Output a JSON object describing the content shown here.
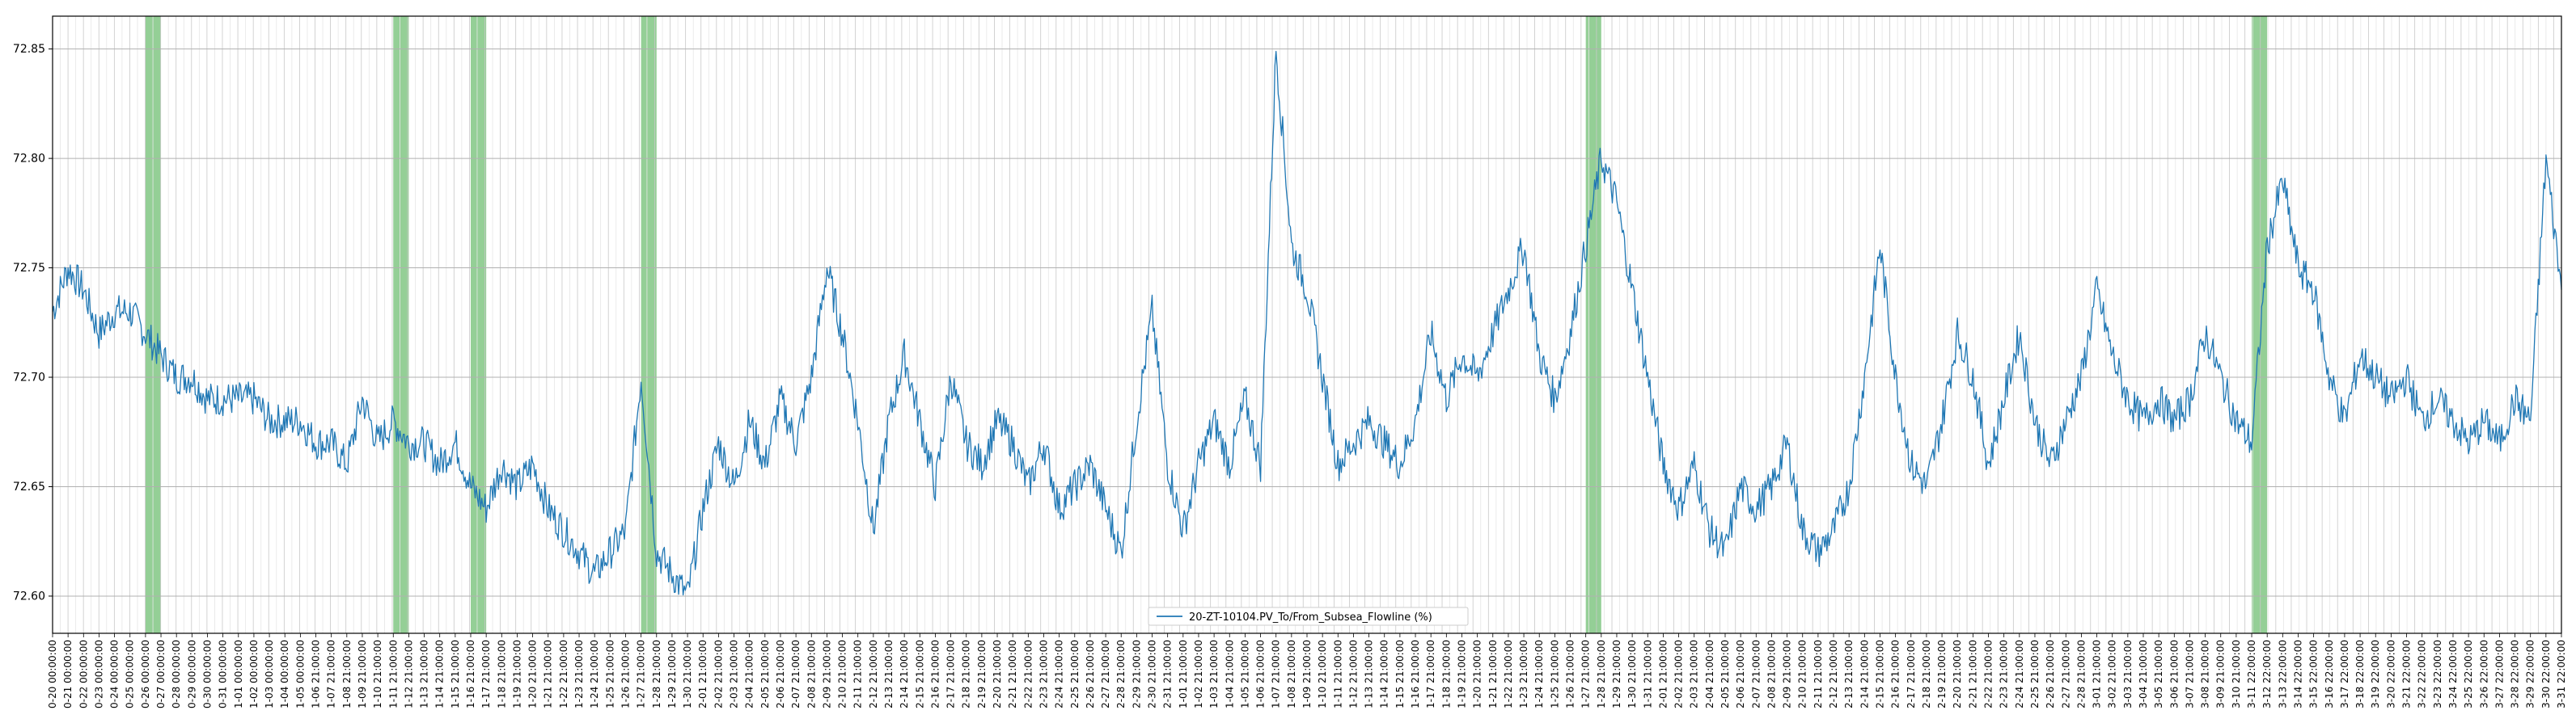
{
  "chart_data": {
    "type": "line",
    "title": "",
    "xlabel": "",
    "ylabel": "",
    "x_range": [
      "2024-10-20",
      "2025-03-31"
    ],
    "ylim": [
      72.583,
      72.865
    ],
    "yticks": [
      72.6,
      72.65,
      72.7,
      72.75,
      72.8,
      72.85
    ],
    "ytick_labels": [
      "72.60",
      "72.65",
      "72.70",
      "72.75",
      "72.80",
      "72.85"
    ],
    "grid": true,
    "legend_position": "bottom-center",
    "series": [
      {
        "name": "20-ZT-10104.PV_To/From_Subsea_Flowline (%)",
        "color": "#1f77b4",
        "points": [
          [
            "2024-10-20",
            72.73
          ],
          [
            "2024-10-21",
            72.75
          ],
          [
            "2024-10-22",
            72.74
          ],
          [
            "2024-10-23",
            72.72
          ],
          [
            "2024-10-24",
            72.73
          ],
          [
            "2024-10-25",
            72.73
          ],
          [
            "2024-10-26",
            72.72
          ],
          [
            "2024-10-27",
            72.71
          ],
          [
            "2024-10-28",
            72.7
          ],
          [
            "2024-10-29",
            72.7
          ],
          [
            "2024-10-30",
            72.69
          ],
          [
            "2024-10-31",
            72.69
          ],
          [
            "2024-11-01",
            72.69
          ],
          [
            "2024-11-02",
            72.69
          ],
          [
            "2024-11-03",
            72.68
          ],
          [
            "2024-11-04",
            72.68
          ],
          [
            "2024-11-05",
            72.68
          ],
          [
            "2024-11-06",
            72.67
          ],
          [
            "2024-11-07",
            72.67
          ],
          [
            "2024-11-08",
            72.66
          ],
          [
            "2024-11-09",
            72.69
          ],
          [
            "2024-11-10",
            72.67
          ],
          [
            "2024-11-11",
            72.68
          ],
          [
            "2024-11-12",
            72.67
          ],
          [
            "2024-11-13",
            72.67
          ],
          [
            "2024-11-14",
            72.66
          ],
          [
            "2024-11-15",
            72.67
          ],
          [
            "2024-11-16",
            72.65
          ],
          [
            "2024-11-17",
            72.64
          ],
          [
            "2024-11-18",
            72.66
          ],
          [
            "2024-11-19",
            72.65
          ],
          [
            "2024-11-20",
            72.66
          ],
          [
            "2024-11-21",
            72.64
          ],
          [
            "2024-11-22",
            72.63
          ],
          [
            "2024-11-23",
            72.62
          ],
          [
            "2024-11-24",
            72.61
          ],
          [
            "2024-11-25",
            72.62
          ],
          [
            "2024-11-26",
            72.63
          ],
          [
            "2024-11-27",
            72.7
          ],
          [
            "2024-11-28",
            72.62
          ],
          [
            "2024-11-29",
            72.61
          ],
          [
            "2024-11-30",
            72.6
          ],
          [
            "2024-12-01",
            72.64
          ],
          [
            "2024-12-02",
            72.67
          ],
          [
            "2024-12-03",
            72.65
          ],
          [
            "2024-12-04",
            72.68
          ],
          [
            "2024-12-05",
            72.66
          ],
          [
            "2024-12-06",
            72.69
          ],
          [
            "2024-12-07",
            72.67
          ],
          [
            "2024-12-08",
            72.7
          ],
          [
            "2024-12-09",
            72.75
          ],
          [
            "2024-12-10",
            72.72
          ],
          [
            "2024-12-11",
            72.68
          ],
          [
            "2024-12-12",
            72.63
          ],
          [
            "2024-12-13",
            72.68
          ],
          [
            "2024-12-14",
            72.71
          ],
          [
            "2024-12-15",
            72.68
          ],
          [
            "2024-12-16",
            72.65
          ],
          [
            "2024-12-17",
            72.7
          ],
          [
            "2024-12-18",
            72.67
          ],
          [
            "2024-12-19",
            72.66
          ],
          [
            "2024-12-20",
            72.68
          ],
          [
            "2024-12-21",
            72.67
          ],
          [
            "2024-12-22",
            72.65
          ],
          [
            "2024-12-23",
            72.67
          ],
          [
            "2024-12-24",
            72.64
          ],
          [
            "2024-12-25",
            72.65
          ],
          [
            "2024-12-26",
            72.66
          ],
          [
            "2024-12-27",
            72.64
          ],
          [
            "2024-12-28",
            72.62
          ],
          [
            "2024-12-29",
            72.68
          ],
          [
            "2024-12-30",
            72.73
          ],
          [
            "2024-12-31",
            72.66
          ],
          [
            "2025-01-01",
            72.63
          ],
          [
            "2025-01-02",
            72.66
          ],
          [
            "2025-01-03",
            72.68
          ],
          [
            "2025-01-04",
            72.66
          ],
          [
            "2025-01-05",
            72.69
          ],
          [
            "2025-01-06",
            72.66
          ],
          [
            "2025-01-07",
            72.85
          ],
          [
            "2025-01-08",
            72.76
          ],
          [
            "2025-01-09",
            72.74
          ],
          [
            "2025-01-10",
            72.7
          ],
          [
            "2025-01-11",
            72.66
          ],
          [
            "2025-01-12",
            72.67
          ],
          [
            "2025-01-13",
            72.68
          ],
          [
            "2025-01-14",
            72.67
          ],
          [
            "2025-01-15",
            72.66
          ],
          [
            "2025-01-16",
            72.68
          ],
          [
            "2025-01-17",
            72.72
          ],
          [
            "2025-01-18",
            72.69
          ],
          [
            "2025-01-19",
            72.71
          ],
          [
            "2025-01-20",
            72.7
          ],
          [
            "2025-01-21",
            72.72
          ],
          [
            "2025-01-22",
            72.74
          ],
          [
            "2025-01-23",
            72.76
          ],
          [
            "2025-01-24",
            72.71
          ],
          [
            "2025-01-25",
            72.69
          ],
          [
            "2025-01-26",
            72.72
          ],
          [
            "2025-01-27",
            72.76
          ],
          [
            "2025-01-28",
            72.8
          ],
          [
            "2025-01-29",
            72.78
          ],
          [
            "2025-01-30",
            72.74
          ],
          [
            "2025-01-31",
            72.7
          ],
          [
            "2025-02-01",
            72.66
          ],
          [
            "2025-02-02",
            72.64
          ],
          [
            "2025-02-03",
            72.66
          ],
          [
            "2025-02-04",
            72.63
          ],
          [
            "2025-02-05",
            72.62
          ],
          [
            "2025-02-06",
            72.65
          ],
          [
            "2025-02-07",
            72.64
          ],
          [
            "2025-02-08",
            72.65
          ],
          [
            "2025-02-09",
            72.67
          ],
          [
            "2025-02-10",
            72.63
          ],
          [
            "2025-02-11",
            72.62
          ],
          [
            "2025-02-12",
            72.63
          ],
          [
            "2025-02-13",
            72.65
          ],
          [
            "2025-02-14",
            72.7
          ],
          [
            "2025-02-15",
            72.76
          ],
          [
            "2025-02-16",
            72.7
          ],
          [
            "2025-02-17",
            72.66
          ],
          [
            "2025-02-18",
            72.65
          ],
          [
            "2025-02-19",
            72.68
          ],
          [
            "2025-02-20",
            72.72
          ],
          [
            "2025-02-21",
            72.7
          ],
          [
            "2025-02-22",
            72.66
          ],
          [
            "2025-02-23",
            72.69
          ],
          [
            "2025-02-24",
            72.72
          ],
          [
            "2025-02-25",
            72.68
          ],
          [
            "2025-02-26",
            72.66
          ],
          [
            "2025-02-27",
            72.68
          ],
          [
            "2025-02-28",
            72.7
          ],
          [
            "2025-03-01",
            72.74
          ],
          [
            "2025-03-02",
            72.71
          ],
          [
            "2025-03-03",
            72.69
          ],
          [
            "2025-03-04",
            72.68
          ],
          [
            "2025-03-05",
            72.69
          ],
          [
            "2025-03-06",
            72.68
          ],
          [
            "2025-03-07",
            72.69
          ],
          [
            "2025-03-08",
            72.72
          ],
          [
            "2025-03-09",
            72.7
          ],
          [
            "2025-03-10",
            72.68
          ],
          [
            "2025-03-11",
            72.67
          ],
          [
            "2025-03-12",
            72.76
          ],
          [
            "2025-03-13",
            72.79
          ],
          [
            "2025-03-14",
            72.75
          ],
          [
            "2025-03-15",
            72.74
          ],
          [
            "2025-03-16",
            72.7
          ],
          [
            "2025-03-17",
            72.68
          ],
          [
            "2025-03-18",
            72.71
          ],
          [
            "2025-03-19",
            72.7
          ],
          [
            "2025-03-20",
            72.69
          ],
          [
            "2025-03-21",
            72.7
          ],
          [
            "2025-03-22",
            72.68
          ],
          [
            "2025-03-23",
            72.69
          ],
          [
            "2025-03-24",
            72.68
          ],
          [
            "2025-03-25",
            72.67
          ],
          [
            "2025-03-26",
            72.68
          ],
          [
            "2025-03-27",
            72.67
          ],
          [
            "2025-03-28",
            72.69
          ],
          [
            "2025-03-29",
            72.68
          ],
          [
            "2025-03-30",
            72.8
          ],
          [
            "2025-03-31",
            72.74
          ]
        ]
      }
    ],
    "highlight_spans": {
      "color": "#4caf50",
      "spans": [
        [
          "2024-10-26",
          "2024-10-27"
        ],
        [
          "2024-11-11",
          "2024-11-12"
        ],
        [
          "2024-11-16",
          "2024-11-17"
        ],
        [
          "2024-11-27",
          "2024-11-28"
        ],
        [
          "2025-01-27",
          "2025-01-28"
        ],
        [
          "2025-03-11",
          "2025-03-12"
        ]
      ]
    }
  },
  "x_ticks": {
    "tick_every_hours": 12,
    "labels": [
      "0-20 00:00:00",
      "0-21 00:00:00",
      "0-22 00:00:00",
      "0-23 00:00:00",
      "0-24 00:00:00",
      "0-25 00:00:00",
      "0-26 00:00:00",
      "0-27 00:00:00",
      "0-28 00:00:00",
      "0-29 00:00:00",
      "0-30 00:00:00",
      "0-31 00:00:00",
      "1-01 00:00:00",
      "1-02 00:00:00",
      "1-03 00:00:00",
      "1-04 00:00:00",
      "1-05 00:00:00",
      "1-06 21:00:00",
      "1-07 21:00:00",
      "1-08 21:00:00",
      "1-09 21:00:00",
      "1-10 21:00:00",
      "1-11 21:00:00",
      "1-12 21:00:00",
      "1-13 21:00:00",
      "1-14 21:00:00",
      "1-15 21:00:00",
      "1-16 21:00:00",
      "1-17 21:00:00",
      "1-18 21:00:00",
      "1-19 21:00:00",
      "1-20 21:00:00",
      "1-21 21:00:00",
      "1-22 21:00:00",
      "1-23 21:00:00",
      "1-24 21:00:00",
      "1-25 21:00:00",
      "1-26 21:00:00",
      "1-27 21:00:00",
      "1-28 21:00:00",
      "1-29 21:00:00",
      "1-30 21:00:00",
      "2-01 21:00:00",
      "2-02 21:00:00",
      "2-03 21:00:00",
      "2-04 21:00:00",
      "2-05 21:00:00",
      "2-06 21:00:00",
      "2-07 21:00:00",
      "2-08 21:00:00",
      "2-09 21:00:00",
      "2-10 21:00:00",
      "2-11 21:00:00",
      "2-12 21:00:00",
      "2-13 21:00:00",
      "2-14 21:00:00",
      "2-15 21:00:00",
      "2-16 21:00:00",
      "2-17 21:00:00",
      "2-18 21:00:00",
      "2-19 21:00:00",
      "2-20 21:00:00",
      "2-21 21:00:00",
      "2-22 21:00:00",
      "2-23 21:00:00",
      "2-24 21:00:00",
      "2-25 21:00:00",
      "2-26 21:00:00",
      "2-27 21:00:00",
      "2-28 21:00:00",
      "2-29 21:00:00",
      "2-30 21:00:00",
      "2-31 21:00:00",
      "1-01 21:00:00",
      "1-02 21:00:00",
      "1-03 21:00:00",
      "1-04 21:00:00",
      "1-05 21:00:00",
      "1-06 21:00:00",
      "1-07 21:00:00",
      "1-08 21:00:00",
      "1-09 21:00:00",
      "1-10 21:00:00",
      "1-11 21:00:00",
      "1-12 21:00:00",
      "1-13 21:00:00",
      "1-14 21:00:00",
      "1-15 21:00:00",
      "1-16 21:00:00",
      "1-17 21:00:00",
      "1-18 21:00:00",
      "1-19 21:00:00",
      "1-20 21:00:00",
      "1-21 21:00:00",
      "1-22 21:00:00",
      "1-23 21:00:00",
      "1-24 21:00:00",
      "1-25 21:00:00",
      "1-26 21:00:00",
      "1-27 21:00:00",
      "1-28 21:00:00",
      "1-29 21:00:00",
      "1-30 21:00:00",
      "1-31 21:00:00",
      "2-01 21:00:00",
      "2-02 21:00:00",
      "2-03 21:00:00",
      "2-04 21:00:00",
      "2-05 21:00:00",
      "2-06 21:00:00",
      "2-07 21:00:00",
      "2-08 21:00:00",
      "2-09 21:00:00",
      "2-10 21:00:00",
      "2-11 21:00:00",
      "2-12 21:00:00",
      "2-13 21:00:00",
      "2-14 21:00:00",
      "2-15 21:00:00",
      "2-16 21:00:00",
      "2-17 21:00:00",
      "2-18 21:00:00",
      "2-19 21:00:00",
      "2-20 21:00:00",
      "2-21 21:00:00",
      "2-22 21:00:00",
      "2-23 21:00:00",
      "2-24 21:00:00",
      "2-25 21:00:00",
      "2-26 21:00:00",
      "2-27 21:00:00",
      "2-28 21:00:00",
      "3-01 21:00:00",
      "3-02 21:00:00",
      "3-03 21:00:00",
      "3-04 21:00:00",
      "3-05 21:00:00",
      "3-06 21:00:00",
      "3-07 21:00:00",
      "3-08 21:00:00",
      "3-09 21:00:00",
      "3-10 21:00:00",
      "3-11 22:00:00",
      "3-12 22:00:00",
      "3-13 22:00:00",
      "3-14 22:00:00",
      "3-15 22:00:00",
      "3-16 22:00:00",
      "3-17 22:00:00",
      "3-18 22:00:00",
      "3-19 22:00:00",
      "3-20 22:00:00",
      "3-21 22:00:00",
      "3-22 22:00:00",
      "3-23 22:00:00",
      "3-24 22:00:00",
      "3-25 22:00:00",
      "3-26 22:00:00",
      "3-27 22:00:00",
      "3-28 22:00:00",
      "3-29 22:00:00",
      "3-30 22:00:00",
      "3-31 22:00:00"
    ]
  }
}
